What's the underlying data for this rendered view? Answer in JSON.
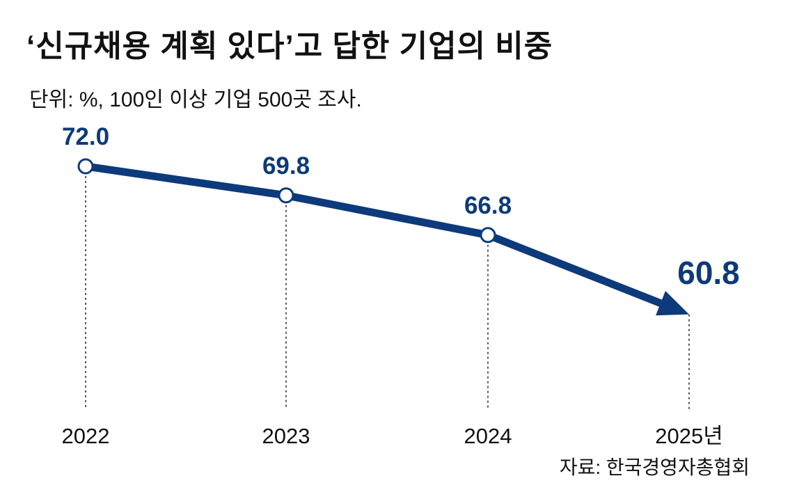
{
  "title": "‘신규채용 계획 있다’고 답한 기업의 비중",
  "subtitle": "단위: %, 100인 이상 기업 500곳 조사.",
  "source": "자료: 한국경영자총협회",
  "colors": {
    "line": "#0d3a7a",
    "label": "#0d3a7a",
    "guide": "#222222",
    "text": "#111111",
    "marker_fill": "#ffffff"
  },
  "chart_data": {
    "type": "line",
    "title": "‘신규채용 계획 있다’고 답한 기업의 비중",
    "subtitle": "단위: %, 100인 이상 기업 500곳 조사.",
    "xlabel": "",
    "ylabel": "%",
    "categories": [
      "2022",
      "2023",
      "2024",
      "2025년"
    ],
    "series": [
      {
        "name": "신규채용 계획 있다",
        "values": [
          72.0,
          69.8,
          66.8,
          60.8
        ],
        "value_labels": [
          "72.0",
          "69.8",
          "66.8",
          "60.8"
        ]
      }
    ],
    "grid": false,
    "legend": "none",
    "highlight_last": true,
    "last_marker": "arrow"
  }
}
